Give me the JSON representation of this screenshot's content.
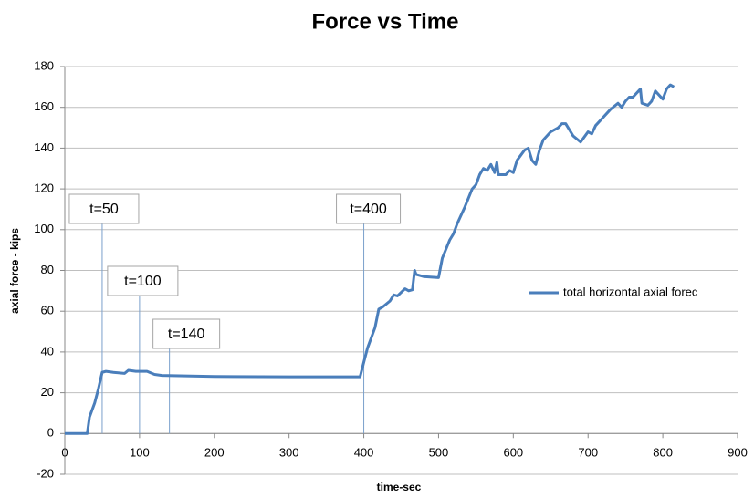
{
  "chart_data": {
    "type": "line",
    "title": "Force vs Time",
    "x_label": "time-sec",
    "y_label": "axial force -  kips",
    "xlim": [
      0,
      900
    ],
    "xticks": [
      0,
      100,
      200,
      300,
      400,
      500,
      600,
      700,
      800,
      900
    ],
    "ylim": [
      -20,
      180
    ],
    "yticks": [
      -20,
      0,
      20,
      40,
      60,
      80,
      100,
      120,
      140,
      160,
      180
    ],
    "grid": true,
    "legend": "right",
    "annotations": [
      {
        "text": "t=50",
        "x": 50
      },
      {
        "text": "t=100",
        "x": 100
      },
      {
        "text": "t=140",
        "x": 140
      },
      {
        "text": "t=400",
        "x": 400
      }
    ],
    "series": [
      {
        "name": "total horizontal axial forec",
        "color": "#4a7ebb",
        "x": [
          0,
          30,
          33,
          40,
          45,
          50,
          55,
          65,
          80,
          85,
          95,
          110,
          120,
          130,
          200,
          300,
          395,
          400,
          405,
          415,
          420,
          425,
          435,
          440,
          445,
          455,
          460,
          465,
          468,
          470,
          480,
          500,
          505,
          515,
          520,
          525,
          535,
          545,
          550,
          555,
          560,
          565,
          570,
          575,
          578,
          580,
          590,
          595,
          600,
          605,
          615,
          620,
          625,
          630,
          635,
          640,
          650,
          660,
          665,
          670,
          680,
          690,
          700,
          705,
          710,
          720,
          730,
          740,
          745,
          750,
          755,
          760,
          770,
          772,
          780,
          785,
          790,
          800,
          805,
          810,
          815
        ],
        "values": [
          0,
          0,
          8,
          15,
          22,
          30,
          30.5,
          30,
          29.5,
          31,
          30.5,
          30.5,
          29,
          28.5,
          28,
          27.8,
          27.8,
          35,
          42,
          52,
          61,
          62,
          65,
          68,
          67.5,
          71,
          70,
          70.5,
          80,
          78,
          77,
          76.5,
          86,
          95,
          98,
          103,
          111,
          120,
          122,
          127,
          130,
          129,
          132,
          128,
          133,
          127,
          127,
          129,
          128,
          134,
          139,
          140,
          134,
          132,
          139,
          144,
          148,
          150,
          152,
          152,
          146,
          143,
          148,
          147,
          151,
          155,
          159,
          162,
          160,
          163,
          165,
          165,
          169,
          162,
          161,
          163,
          168,
          164,
          169,
          171,
          170
        ]
      }
    ]
  }
}
